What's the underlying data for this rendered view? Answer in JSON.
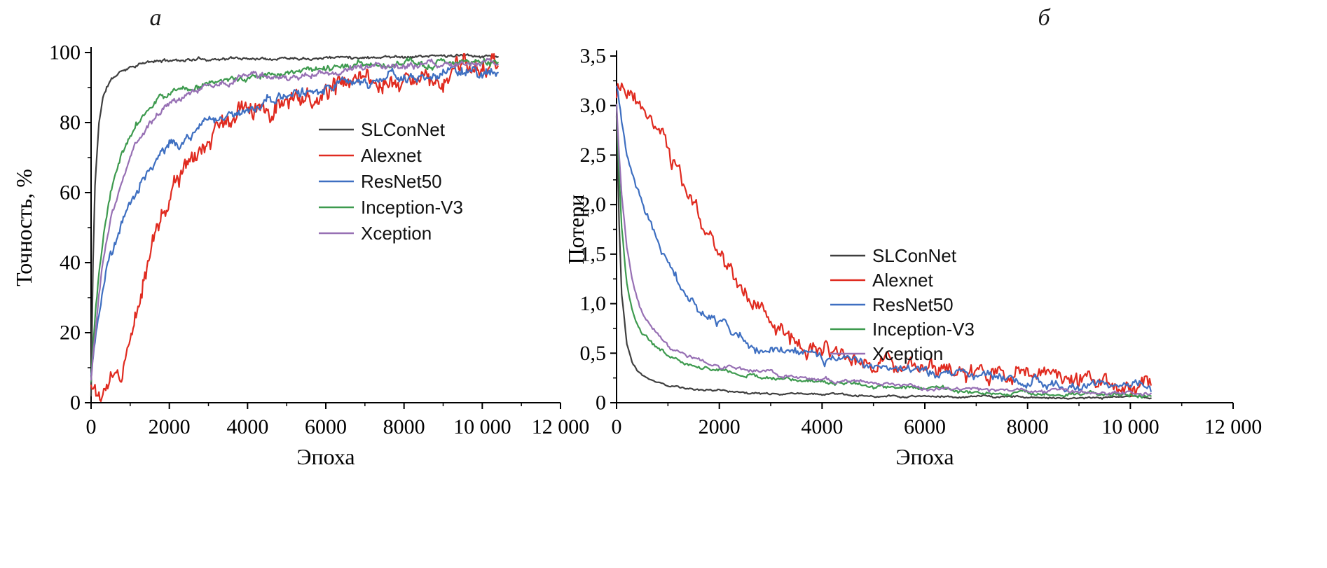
{
  "figure": {
    "panels": [
      {
        "label": "a",
        "description": "accuracy vs epoch"
      },
      {
        "label": "б",
        "description": "loss vs epoch"
      }
    ]
  },
  "chart_data": [
    {
      "panel_label": "a",
      "type": "line",
      "title": "",
      "xlabel": "Эпоха",
      "ylabel": "Точность, %",
      "xlim": [
        0,
        12000
      ],
      "ylim": [
        0,
        100
      ],
      "xticks": [
        0,
        2000,
        4000,
        6000,
        8000,
        10000,
        12000
      ],
      "xtick_labels": [
        "0",
        "2000",
        "4000",
        "6000",
        "8000",
        "10 000",
        "12 000"
      ],
      "yticks": [
        0,
        20,
        40,
        60,
        80,
        100
      ],
      "ytick_labels": [
        "0",
        "20",
        "40",
        "60",
        "80",
        "100"
      ],
      "x_minor_step": 1000,
      "y_minor_step": 10,
      "grid": false,
      "legend_position": "inside-upper-right",
      "x": [
        0,
        50,
        100,
        200,
        300,
        400,
        500,
        750,
        1000,
        1250,
        1500,
        1750,
        2000,
        2500,
        3000,
        3500,
        4000,
        5000,
        6000,
        7000,
        8000,
        9000,
        10000,
        10400
      ],
      "series": [
        {
          "name": "SLConNet",
          "color": "#3f3f3f",
          "noise": 0.6,
          "y": [
            2,
            40,
            62,
            80,
            87,
            90,
            92,
            94.5,
            96,
            96.8,
            97.2,
            97.5,
            97.8,
            98,
            98.2,
            98.3,
            98.4,
            98.6,
            98.7,
            98.8,
            98.9,
            99,
            99,
            99
          ]
        },
        {
          "name": "Alexnet",
          "color": "#e02b20",
          "noise": 4.5,
          "y": [
            4,
            4,
            4,
            4.5,
            5,
            5,
            5.5,
            8,
            18,
            30,
            40,
            49,
            56,
            66,
            73,
            79,
            83,
            87,
            89,
            91,
            92.5,
            93.5,
            94,
            94.5
          ]
        },
        {
          "name": "ResNet50",
          "color": "#3e6fc1",
          "noise": 2.2,
          "y": [
            8,
            14,
            19,
            27,
            33,
            38,
            43,
            51,
            57,
            62,
            66,
            70,
            73,
            77,
            80,
            83,
            85,
            88,
            90,
            92,
            93,
            94,
            94.5,
            95
          ]
        },
        {
          "name": "Inception-V3",
          "color": "#3d9a4e",
          "noise": 1.3,
          "y": [
            6,
            16,
            24,
            37,
            46,
            53,
            59,
            69,
            76,
            81,
            84,
            87,
            88.5,
            90.5,
            91.5,
            92.5,
            93,
            94.5,
            95.5,
            96,
            96.5,
            97,
            97.5,
            97.5
          ]
        },
        {
          "name": "Xception",
          "color": "#9770b4",
          "noise": 1.3,
          "y": [
            6,
            13,
            19,
            30,
            39,
            46,
            52,
            62,
            70,
            76,
            80,
            83,
            85.5,
            88.5,
            90.5,
            91.5,
            92.5,
            93.5,
            94.5,
            95.5,
            96,
            96.5,
            97,
            97
          ]
        }
      ]
    },
    {
      "panel_label": "б",
      "type": "line",
      "title": "",
      "xlabel": "Эпоха",
      "ylabel": "Потери",
      "xlim": [
        0,
        12000
      ],
      "ylim": [
        0,
        3.5
      ],
      "xticks": [
        0,
        2000,
        4000,
        6000,
        8000,
        10000,
        12000
      ],
      "xtick_labels": [
        "0",
        "2000",
        "4000",
        "6000",
        "8000",
        "10 000",
        "12 000"
      ],
      "yticks": [
        0,
        0.5,
        1.0,
        1.5,
        2.0,
        2.5,
        3.0,
        3.5
      ],
      "ytick_labels": [
        "0",
        "0,5",
        "1,0",
        "1,5",
        "2,0",
        "2,5",
        "3,0",
        "3,5"
      ],
      "x_minor_step": 1000,
      "y_minor_step": 0.25,
      "grid": false,
      "legend_position": "inside-middle-right",
      "x": [
        0,
        50,
        100,
        200,
        300,
        400,
        500,
        750,
        1000,
        1250,
        1500,
        1750,
        2000,
        2500,
        3000,
        3500,
        4000,
        5000,
        6000,
        7000,
        8000,
        9000,
        10000,
        10400
      ],
      "series": [
        {
          "name": "SLConNet",
          "color": "#3f3f3f",
          "noise": 0.015,
          "y": [
            2.9,
            1.8,
            1.1,
            0.6,
            0.42,
            0.33,
            0.28,
            0.22,
            0.18,
            0.16,
            0.14,
            0.13,
            0.12,
            0.1,
            0.09,
            0.09,
            0.08,
            0.07,
            0.06,
            0.06,
            0.05,
            0.05,
            0.05,
            0.05
          ]
        },
        {
          "name": "Alexnet",
          "color": "#e02b20",
          "noise": 0.14,
          "y": [
            3.05,
            3.12,
            3.15,
            3.12,
            3.08,
            3.02,
            2.98,
            2.85,
            2.6,
            2.3,
            2.0,
            1.7,
            1.45,
            1.05,
            0.85,
            0.62,
            0.5,
            0.38,
            0.32,
            0.3,
            0.27,
            0.22,
            0.2,
            0.17
          ]
        },
        {
          "name": "ResNet50",
          "color": "#3e6fc1",
          "noise": 0.07,
          "y": [
            3.2,
            3.05,
            2.85,
            2.5,
            2.3,
            2.15,
            2.0,
            1.65,
            1.4,
            1.15,
            1.0,
            0.88,
            0.78,
            0.63,
            0.55,
            0.5,
            0.45,
            0.37,
            0.3,
            0.26,
            0.22,
            0.18,
            0.16,
            0.15
          ]
        },
        {
          "name": "Inception-V3",
          "color": "#3d9a4e",
          "noise": 0.03,
          "y": [
            3.0,
            2.3,
            1.75,
            1.2,
            0.95,
            0.8,
            0.72,
            0.58,
            0.48,
            0.42,
            0.38,
            0.35,
            0.33,
            0.28,
            0.25,
            0.23,
            0.21,
            0.17,
            0.14,
            0.12,
            0.1,
            0.09,
            0.08,
            0.08
          ]
        },
        {
          "name": "Xception",
          "color": "#9770b4",
          "noise": 0.03,
          "y": [
            3.0,
            2.5,
            2.1,
            1.55,
            1.25,
            1.05,
            0.92,
            0.72,
            0.58,
            0.5,
            0.45,
            0.4,
            0.37,
            0.32,
            0.28,
            0.25,
            0.23,
            0.19,
            0.16,
            0.13,
            0.11,
            0.1,
            0.09,
            0.08
          ]
        }
      ]
    }
  ]
}
